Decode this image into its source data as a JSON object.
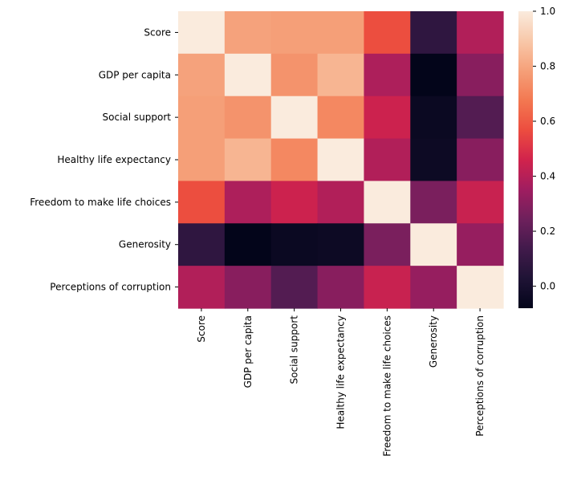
{
  "chart_data": {
    "type": "heatmap",
    "title": "",
    "xlabel": "",
    "ylabel": "",
    "row_labels": [
      "Score",
      "GDP per capita",
      "Social support",
      "Healthy life expectancy",
      "Freedom to make life choices",
      "Generosity",
      "Perceptions of corruption"
    ],
    "col_labels": [
      "Score",
      "GDP per capita",
      "Social support",
      "Healthy life expectancy",
      "Freedom to make life choices",
      "Generosity",
      "Perceptions of corruption"
    ],
    "values": [
      [
        1.0,
        0.79,
        0.78,
        0.78,
        0.57,
        0.08,
        0.39
      ],
      [
        0.79,
        1.0,
        0.75,
        0.84,
        0.38,
        -0.08,
        0.3
      ],
      [
        0.78,
        0.75,
        1.0,
        0.72,
        0.45,
        -0.05,
        0.18
      ],
      [
        0.78,
        0.84,
        0.72,
        1.0,
        0.39,
        -0.04,
        0.3
      ],
      [
        0.57,
        0.38,
        0.45,
        0.39,
        1.0,
        0.27,
        0.44
      ],
      [
        0.08,
        -0.08,
        -0.05,
        -0.04,
        0.27,
        1.0,
        0.33
      ],
      [
        0.39,
        0.3,
        0.18,
        0.3,
        0.44,
        0.33,
        1.0
      ]
    ],
    "colorbar": {
      "min": -0.08,
      "max": 1.0,
      "ticks": [
        0.0,
        0.2,
        0.4,
        0.6,
        0.8,
        1.0
      ],
      "tick_labels": [
        "0.0",
        "0.2",
        "0.4",
        "0.6",
        "0.8",
        "1.0"
      ],
      "colormap": "rocket"
    },
    "grid": false,
    "legend": "colorbar-right"
  }
}
